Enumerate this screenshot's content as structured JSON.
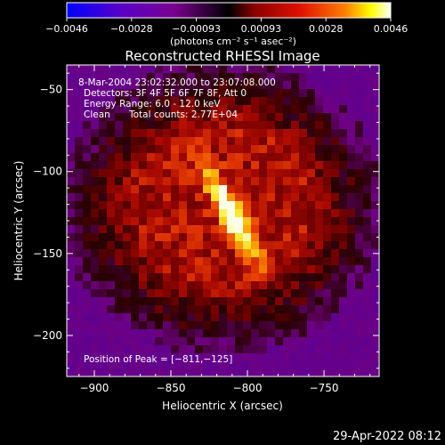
{
  "chart_data": {
    "type": "heatmap",
    "title": "Reconstructed RHESSI Image",
    "xlabel": "Heliocentric X (arcsec)",
    "ylabel": "Heliocentric Y (arcsec)",
    "xlim": [
      -918,
      -714
    ],
    "ylim": [
      -225,
      -35
    ],
    "x_ticks": [
      -900,
      -850,
      -800,
      -750
    ],
    "y_ticks": [
      -50,
      -100,
      -150,
      -200
    ],
    "x_tick_labels": [
      "−900",
      "−850",
      "−800",
      "−750"
    ],
    "y_tick_labels": [
      "−50",
      "−100",
      "−150",
      "−200"
    ],
    "colorbar": {
      "range": [
        -0.0046,
        0.0046
      ],
      "tick_labels": [
        "−0.0046",
        "−0.0028",
        "−0.00093",
        "0.00093",
        "0.0028",
        "0.0046"
      ],
      "unit_label": "(photons cm⁻² s⁻¹ asec⁻²)",
      "colors": [
        "#0000ff",
        "#7f00c0",
        "#000000",
        "#8b0000",
        "#ff3000",
        "#ffff00",
        "#ffffff"
      ]
    },
    "annotations": [
      "8-Mar-2004 23:02:32.000 to 23:07:08.000",
      "Detectors: 3F 4F 5F 6F 7F 8F, Att 0",
      "Energy Range: 6.0 - 12.0 keV",
      "Clean",
      "Total counts: 2.77E+04"
    ],
    "peak": {
      "x": -811,
      "y": -125,
      "label": "Position of Peak = [−811,−125]"
    },
    "grid": false
  },
  "footer": {
    "date": "29-Apr-2022 08:12"
  }
}
